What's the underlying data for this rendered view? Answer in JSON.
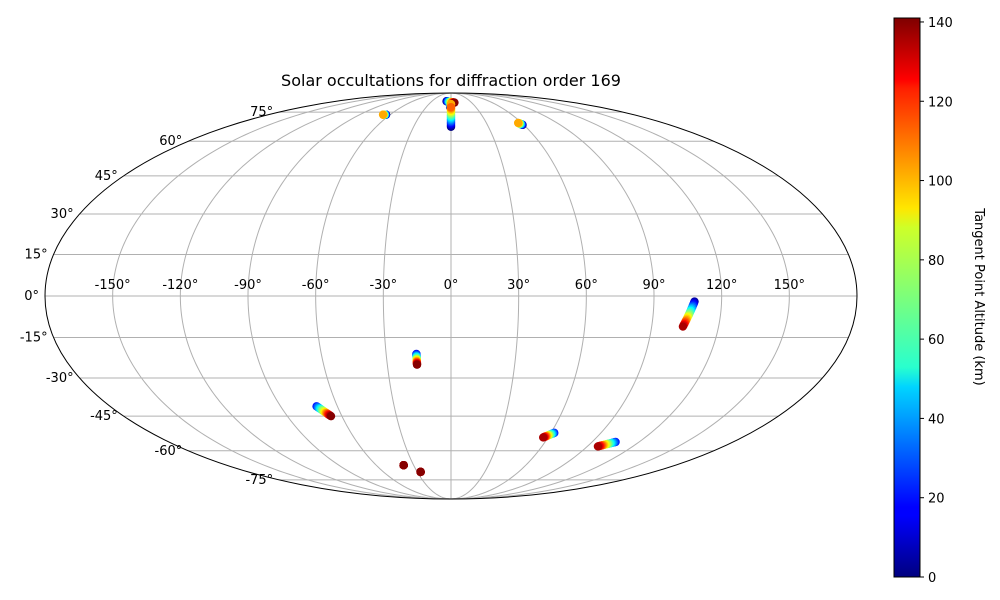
{
  "chart_data": {
    "type": "scatter",
    "projection": "mollweide",
    "title": "Solar occultations for diffraction order 169",
    "grid": true,
    "lon_ticks": [
      -150,
      -120,
      -90,
      -60,
      -30,
      0,
      30,
      60,
      90,
      120,
      150
    ],
    "lon_tick_labels": [
      "-150°",
      "-120°",
      "-90°",
      "-60°",
      "-30°",
      "0°",
      "30°",
      "60°",
      "90°",
      "120°",
      "150°"
    ],
    "lat_ticks": [
      -75,
      -60,
      -45,
      -30,
      -15,
      0,
      15,
      30,
      45,
      60,
      75
    ],
    "lat_tick_labels": [
      "-75°",
      "-60°",
      "-45°",
      "-30°",
      "-15°",
      "0°",
      "15°",
      "30°",
      "45°",
      "60°",
      "75°"
    ],
    "colorbar": {
      "label": "Tangent Point Altitude (km)",
      "range": [
        0,
        141
      ],
      "ticks": [
        0,
        20,
        40,
        60,
        80,
        100,
        120,
        140
      ],
      "colormap": "jet"
    },
    "tracks": [
      {
        "lon0": -64,
        "lat0": 73.5,
        "lon1": -67,
        "lat1": 73.5,
        "alt0": 0,
        "alt1": 100
      },
      {
        "lon0": -7,
        "lat0": 82,
        "lon1": 5,
        "lat1": 81,
        "alt0": 0,
        "alt1": 140
      },
      {
        "lon0": -1,
        "lat0": 78,
        "lon1": 0,
        "lat1": 80,
        "alt0": 0,
        "alt1": 100
      },
      {
        "lon0": 0,
        "lat0": 67,
        "lon1": 0,
        "lat1": 78,
        "alt0": 0,
        "alt1": 110
      },
      {
        "lon0": 59,
        "lat0": 68,
        "lon1": 57,
        "lat1": 69,
        "alt0": 0,
        "alt1": 100
      },
      {
        "lon0": 108,
        "lat0": -2,
        "lon1": 104,
        "lat1": -11,
        "alt0": 5,
        "alt1": 135
      },
      {
        "lon0": -16,
        "lat0": -21,
        "lon1": -16,
        "lat1": -25,
        "alt0": 15,
        "alt1": 140
      },
      {
        "lon0": -71,
        "lat0": -41,
        "lon1": -66,
        "lat1": -45,
        "alt0": 20,
        "alt1": 140
      },
      {
        "lon0": 62,
        "lat0": -52,
        "lon1": 57,
        "lat1": -54,
        "alt0": 20,
        "alt1": 135
      },
      {
        "lon0": 105,
        "lat0": -56,
        "lon1": 97,
        "lat1": -58,
        "alt0": 20,
        "alt1": 135
      },
      {
        "lon0": -38,
        "lat0": -67,
        "lon1": -38,
        "lat1": -67,
        "alt0": 120,
        "alt1": 140
      },
      {
        "lon0": -27,
        "lat0": -70.5,
        "lon1": -27,
        "lat1": -70.5,
        "alt0": 120,
        "alt1": 140
      }
    ]
  }
}
